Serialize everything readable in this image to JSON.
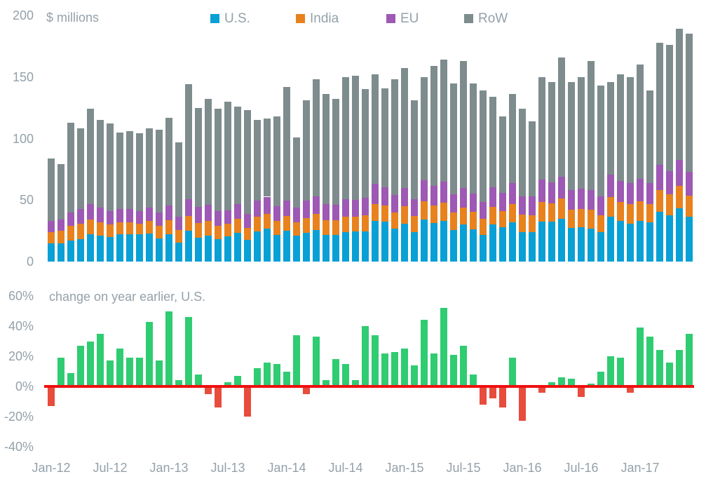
{
  "top_chart": {
    "title": "$ millions",
    "ytick_labels": [
      "200",
      "150",
      "100",
      "50",
      "0"
    ],
    "ytick_values": [
      200,
      150,
      100,
      50,
      0
    ],
    "legend": [
      {
        "label": "U.S.",
        "color": "#09a0d6",
        "x": 300
      },
      {
        "label": "India",
        "color": "#e8821e",
        "x": 422
      },
      {
        "label": "EU",
        "color": "#9d59b4",
        "x": 551
      },
      {
        "label": "RoW",
        "color": "#7e8c8d",
        "x": 662
      }
    ]
  },
  "bottom_chart": {
    "title": "change on year earlier, U.S.",
    "ytick_labels": [
      "60%",
      "40%",
      "20%",
      "0%",
      "-20%",
      "-40%"
    ],
    "ytick_values": [
      60,
      40,
      20,
      0,
      -20,
      -40
    ],
    "positive_color": "#2fcc71",
    "negative_color": "#e74c3c",
    "zero_line_color": "#ef1010"
  },
  "x_axis": {
    "tick_labels": [
      "Jan-12",
      "Jul-12",
      "Jan-13",
      "Jul-13",
      "Jan-14",
      "Jul-14",
      "Jan-15",
      "Jul-15",
      "Jan-16",
      "Jul-16",
      "Jan-17"
    ],
    "tick_every": 6
  },
  "chart_data": [
    {
      "type": "bar",
      "stacked": true,
      "title": "$ millions",
      "x": [
        "Jan-12",
        "Feb-12",
        "Mar-12",
        "Apr-12",
        "May-12",
        "Jun-12",
        "Jul-12",
        "Aug-12",
        "Sep-12",
        "Oct-12",
        "Nov-12",
        "Dec-12",
        "Jan-13",
        "Feb-13",
        "Mar-13",
        "Apr-13",
        "May-13",
        "Jun-13",
        "Jul-13",
        "Aug-13",
        "Sep-13",
        "Oct-13",
        "Nov-13",
        "Dec-13",
        "Jan-14",
        "Feb-14",
        "Mar-14",
        "Apr-14",
        "May-14",
        "Jun-14",
        "Jul-14",
        "Aug-14",
        "Sep-14",
        "Oct-14",
        "Nov-14",
        "Dec-14",
        "Jan-15",
        "Feb-15",
        "Mar-15",
        "Apr-15",
        "May-15",
        "Jun-15",
        "Jul-15",
        "Aug-15",
        "Sep-15",
        "Oct-15",
        "Nov-15",
        "Dec-15",
        "Jan-16",
        "Feb-16",
        "Mar-16",
        "Apr-16",
        "May-16",
        "Jun-16",
        "Jul-16",
        "Aug-16",
        "Sep-16",
        "Oct-16",
        "Nov-16",
        "Dec-16",
        "Jan-17",
        "Feb-17",
        "Mar-17",
        "Apr-17",
        "May-17",
        "Jun-17"
      ],
      "series": [
        {
          "name": "U.S.",
          "color": "#09a0d6",
          "values": [
            15,
            15,
            17,
            18,
            22,
            21,
            20,
            22,
            22,
            22,
            23,
            19,
            22.5,
            15.6,
            24.8,
            19.4,
            20.9,
            18.1,
            20.6,
            23.5,
            17.6,
            24.6,
            26.7,
            21.9,
            24.8,
            20.9,
            23.6,
            25.8,
            21.7,
            21.4,
            23.7,
            24.4,
            24.6,
            33,
            32.6,
            26.9,
            31,
            23.8,
            34,
            31.5,
            33,
            25.9,
            30.1,
            26.4,
            21.6,
            30.4,
            28,
            32,
            23.9,
            23.8,
            32.6,
            32.4,
            35,
            27.2,
            28,
            26.9,
            23.8,
            36.5,
            33.3,
            30.7,
            33.2,
            31.7,
            40.4,
            37.6,
            43.4,
            36.7
          ]
        },
        {
          "name": "India",
          "color": "#e8821e",
          "values": [
            9,
            10,
            12,
            13,
            12,
            11,
            10,
            10,
            10,
            9,
            10,
            10,
            11,
            10,
            12,
            12,
            12,
            11,
            10,
            11,
            10,
            12,
            12,
            11,
            12,
            11,
            12,
            13,
            12,
            12,
            13,
            12,
            13,
            14,
            13,
            13,
            14,
            13,
            15,
            14,
            15,
            14,
            14,
            14,
            13,
            14,
            13,
            15,
            14,
            14,
            16,
            15,
            16,
            15,
            15,
            15,
            14,
            16,
            15,
            16,
            16,
            15,
            18,
            17,
            18,
            17
          ]
        },
        {
          "name": "EU",
          "color": "#9d59b4",
          "values": [
            9,
            9,
            11,
            12,
            13,
            12,
            11,
            11,
            11,
            10,
            11,
            11,
            12,
            11,
            14,
            13,
            13,
            12,
            11,
            12,
            11,
            13,
            14,
            12,
            13,
            12,
            14,
            14,
            13,
            13,
            14,
            14,
            14,
            16,
            15,
            14,
            15,
            14,
            17,
            16,
            17,
            15,
            16,
            15,
            14,
            16,
            15,
            17,
            15,
            15,
            18,
            17,
            18,
            16,
            16,
            16,
            15,
            18,
            17,
            17,
            18,
            17,
            20,
            19,
            21,
            19
          ]
        },
        {
          "name": "RoW",
          "color": "#7e8c8d",
          "values": [
            51,
            45,
            73,
            65,
            77,
            71,
            71,
            62,
            63,
            63,
            64,
            67,
            71.5,
            60.4,
            93.2,
            80.6,
            86.1,
            82.9,
            88.4,
            79.5,
            84.4,
            65.4,
            63.3,
            73.1,
            92.2,
            57.1,
            81.4,
            95.2,
            89.3,
            85.6,
            99.3,
            100.6,
            88.4,
            89,
            80.4,
            94.1,
            97,
            80.2,
            84,
            97.5,
            99,
            90.1,
            102.9,
            89.6,
            90.4,
            73.6,
            62,
            72,
            71.1,
            61.2,
            83.4,
            81.6,
            97,
            87.8,
            91,
            105.1,
            90.2,
            75.5,
            86.7,
            86.3,
            92.8,
            75.3,
            99.6,
            102.4,
            106.6,
            112.3
          ]
        }
      ],
      "ylim": [
        0,
        200
      ],
      "yticks": [
        0,
        50,
        100,
        150,
        200
      ],
      "grid": false,
      "legend_position": "top"
    },
    {
      "type": "bar",
      "title": "change on year earlier, U.S.",
      "unit": "percent",
      "values": [
        -13,
        19,
        9,
        27,
        30,
        35,
        17,
        25,
        19,
        19,
        43,
        17,
        50,
        4,
        46,
        8,
        -5,
        -14,
        3,
        7,
        -20,
        12,
        16,
        15,
        10,
        34,
        -5,
        33,
        4,
        18,
        15,
        4,
        40,
        34,
        22,
        23,
        25,
        14,
        44,
        22,
        52,
        21,
        27,
        8,
        -12,
        -8,
        -14,
        19,
        -23,
        0,
        -4,
        3,
        6,
        5,
        -7,
        2,
        10,
        20,
        19,
        -4,
        39,
        33,
        24,
        16,
        24,
        35
      ],
      "ylim": [
        -40,
        60
      ],
      "yticks": [
        -40,
        -20,
        0,
        20,
        40,
        60
      ],
      "grid": false
    }
  ]
}
